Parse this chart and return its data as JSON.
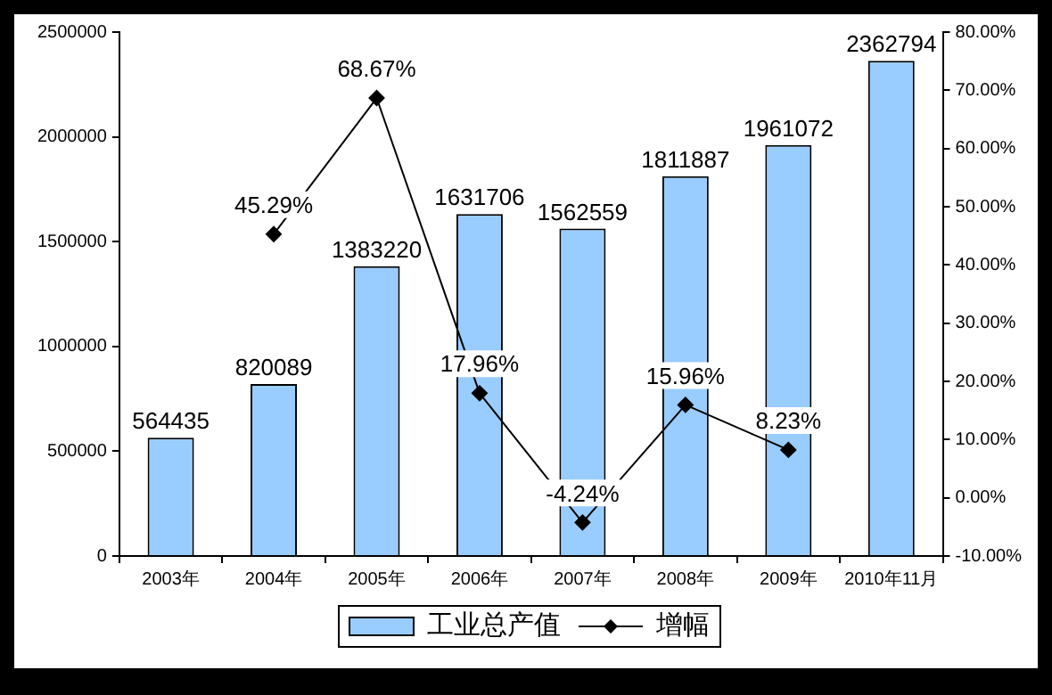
{
  "chart_data": {
    "type": "bar",
    "categories": [
      "2003年",
      "2004年",
      "2005年",
      "2006年",
      "2007年",
      "2008年",
      "2009年",
      "2010年11月"
    ],
    "series": [
      {
        "name": "工业总产值",
        "color": "#99ccff",
        "values": [
          564435,
          820089,
          1383220,
          1631706,
          1562559,
          1811887,
          1961072,
          2362794
        ],
        "value_labels": [
          "564435",
          "820089",
          "1383220",
          "1631706",
          "1562559",
          "1811887",
          "1961072",
          "2362794"
        ]
      },
      {
        "name": "增幅",
        "type": "line",
        "axis": "y2",
        "color": "#000000",
        "values": [
          null,
          45.29,
          68.67,
          17.96,
          -4.24,
          15.96,
          8.23,
          null
        ],
        "value_labels": [
          null,
          "45.29%",
          "68.67%",
          "17.96%",
          "-4.24%",
          "15.96%",
          "8.23%",
          null
        ]
      }
    ],
    "ylim": [
      0,
      2500000
    ],
    "yticks": [
      0,
      500000,
      1000000,
      1500000,
      2000000,
      2500000
    ],
    "y2lim": [
      -10,
      80
    ],
    "y2ticks": [
      {
        "value": -10,
        "label": "-10.00%"
      },
      {
        "value": 0,
        "label": "0.00%"
      },
      {
        "value": 10,
        "label": "10.00%"
      },
      {
        "value": 20,
        "label": "20.00%"
      },
      {
        "value": 30,
        "label": "30.00%"
      },
      {
        "value": 40,
        "label": "40.00%"
      },
      {
        "value": 50,
        "label": "50.00%"
      },
      {
        "value": 60,
        "label": "60.00%"
      },
      {
        "value": 70,
        "label": "70.00%"
      },
      {
        "value": 80,
        "label": "80.00%"
      }
    ],
    "grid": false,
    "legend": "bottom",
    "marker": "diamond",
    "line_style": "solid"
  }
}
